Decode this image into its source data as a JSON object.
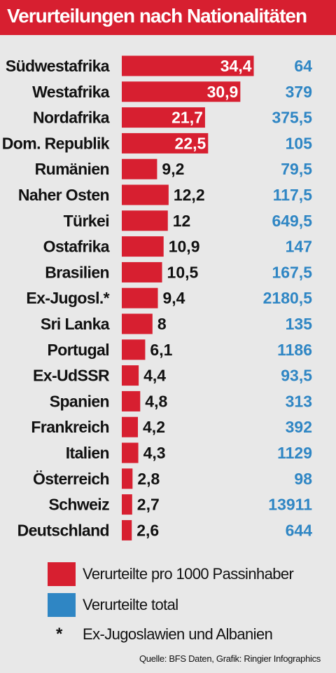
{
  "title": "Verurteilungen nach Nationalitäten",
  "legend": {
    "series1": "Verurteilte pro 1000 Passinhaber",
    "series2": "Verurteilte total",
    "footnote_marker": "*",
    "footnote": "Ex-Jugoslawien und Albanien"
  },
  "source": "Quelle: BFS Daten,  Grafik: Ringier Infographics",
  "colors": {
    "red": "#d71f30",
    "blue": "#2f86c4",
    "header": "#d71f30",
    "background": "#e8e8e8"
  },
  "chart_data": {
    "type": "bar",
    "orientation": "horizontal",
    "title": "Verurteilungen nach Nationalitäten",
    "categories": [
      "Südwestafrika",
      "Westafrika",
      "Nordafrika",
      "Dom. Republik",
      "Rumänien",
      "Naher Osten",
      "Türkei",
      "Ostafrika",
      "Brasilien",
      "Ex-Jugosl.*",
      "Sri Lanka",
      "Portugal",
      "Ex-UdSSR",
      "Spanien",
      "Frankreich",
      "Italien",
      "Österreich",
      "Schweiz",
      "Deutschland"
    ],
    "series": [
      {
        "name": "Verurteilte pro 1000 Passinhaber",
        "values": [
          34.4,
          30.9,
          21.7,
          22.5,
          9.2,
          12.2,
          12,
          10.9,
          10.5,
          9.4,
          8,
          6.1,
          4.4,
          4.8,
          4.2,
          4.3,
          2.8,
          2.7,
          2.6
        ],
        "labels": [
          "34,4",
          "30,9",
          "21,7",
          "22,5",
          "9,2",
          "12,2",
          "12",
          "10,9",
          "10,5",
          "9,4",
          "8",
          "6,1",
          "4,4",
          "4,8",
          "4,2",
          "4,3",
          "2,8",
          "2,7",
          "2,6"
        ]
      },
      {
        "name": "Verurteilte total",
        "values": [
          64,
          379,
          375.5,
          105,
          79.5,
          117.5,
          649.5,
          147,
          167.5,
          2180.5,
          135,
          1186,
          93.5,
          313,
          392,
          1129,
          98,
          13911,
          644
        ],
        "labels": [
          "64",
          "379",
          "375,5",
          "105",
          "79,5",
          "117,5",
          "649,5",
          "147",
          "167,5",
          "2180,5",
          "135",
          "1186",
          "93,5",
          "313",
          "392",
          "1129",
          "98",
          "13911",
          "644"
        ]
      }
    ],
    "xlim": [
      0,
      36
    ],
    "grid": false,
    "legend": "bottom"
  }
}
